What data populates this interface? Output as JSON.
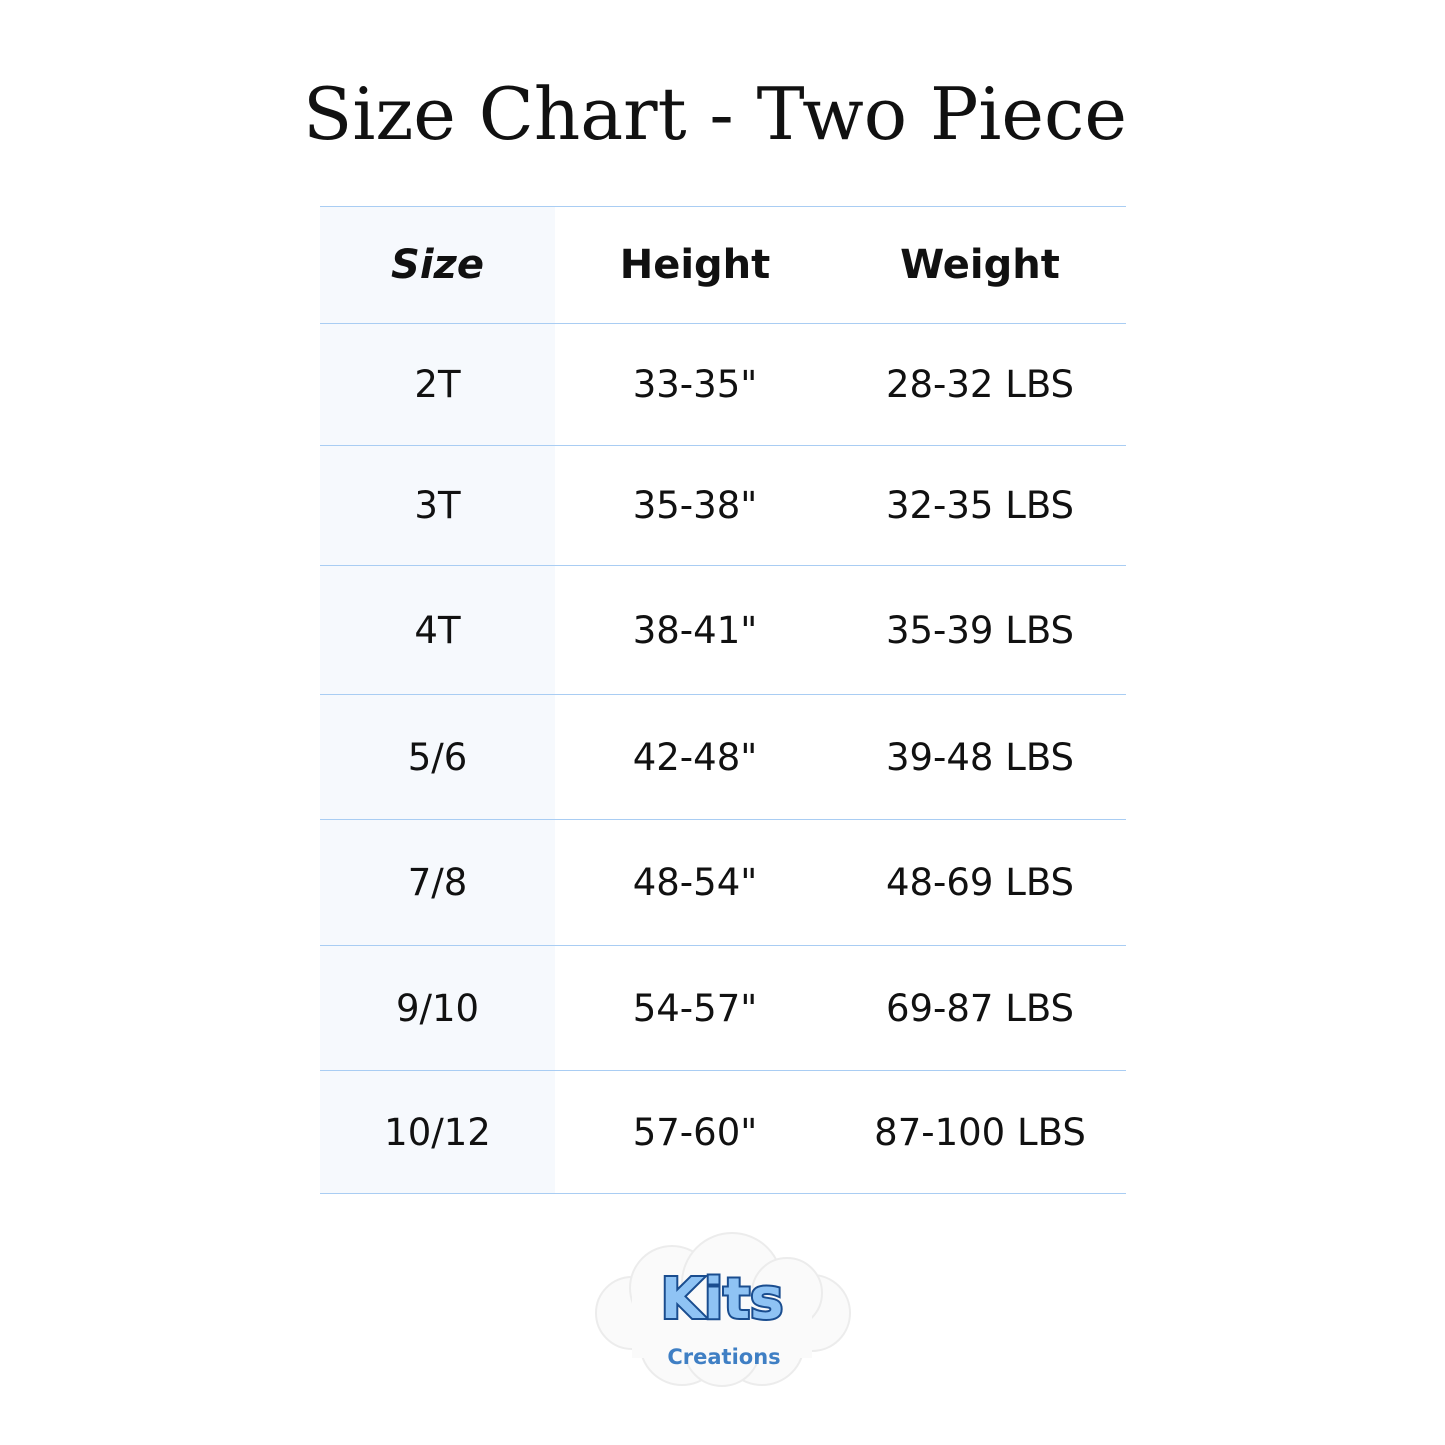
{
  "title": "Size Chart - Two Piece",
  "table": {
    "headers": [
      "Size",
      "Height",
      "Weight"
    ],
    "rows": [
      [
        "2T",
        "33-35\"",
        "28-32 LBS"
      ],
      [
        "3T",
        "35-38\"",
        "32-35 LBS"
      ],
      [
        "4T",
        "38-41\"",
        "35-39 LBS"
      ],
      [
        "5/6",
        "42-48\"",
        "39-48 LBS"
      ],
      [
        "7/8",
        "48-54\"",
        "48-69 LBS"
      ],
      [
        "9/10",
        "54-57\"",
        "69-87 LBS"
      ],
      [
        "10/12",
        "57-60\"",
        "87-100 LBS"
      ]
    ]
  },
  "logo": {
    "line1": "Kits",
    "line2": "Creations"
  },
  "colors": {
    "rule": "#a9cdf3",
    "first_column_bg": "#f6f9fd",
    "logo_fill": "#8fc3f4",
    "logo_outline": "#1a4d8f",
    "logo_sub": "#3f7fc4"
  }
}
